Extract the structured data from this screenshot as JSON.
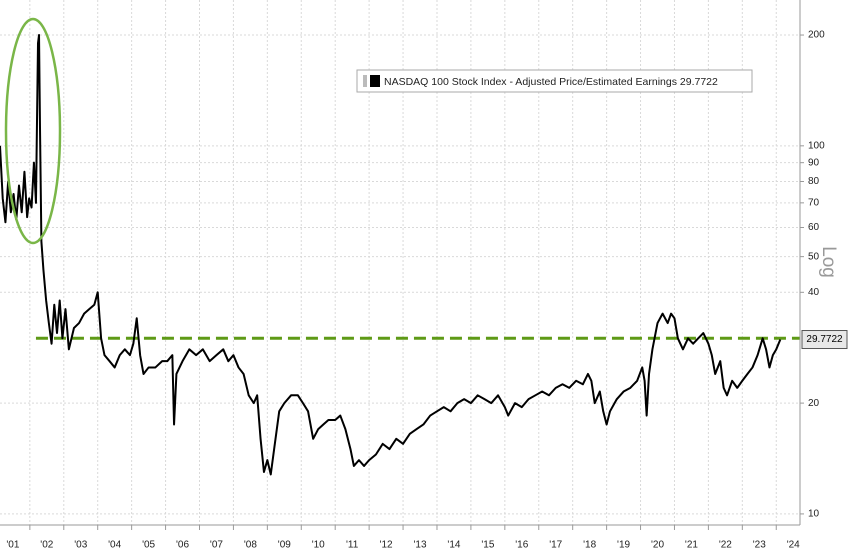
{
  "chart_data": {
    "type": "line",
    "log_scale": true,
    "scale_label": "Log",
    "grid": true,
    "legend": "top-right",
    "x": [
      2001.12,
      2001.2,
      2001.28,
      2001.36,
      2001.44,
      2001.52,
      2001.6,
      2001.68,
      2001.76,
      2001.84,
      2001.92,
      2001.98,
      2002.05,
      2002.12,
      2002.18,
      2002.24,
      2002.27,
      2002.3,
      2002.34,
      2002.4,
      2002.48,
      2002.56,
      2002.64,
      2002.72,
      2002.8,
      2002.88,
      2002.96,
      2003.05,
      2003.15,
      2003.3,
      2003.45,
      2003.6,
      2003.75,
      2003.9,
      2004.0,
      2004.1,
      2004.2,
      2004.35,
      2004.5,
      2004.65,
      2004.8,
      2004.95,
      2005.05,
      2005.15,
      2005.25,
      2005.35,
      2005.5,
      2005.7,
      2005.9,
      2006.05,
      2006.2,
      2006.25,
      2006.32,
      2006.5,
      2006.7,
      2006.9,
      2007.1,
      2007.3,
      2007.5,
      2007.7,
      2007.85,
      2008.0,
      2008.15,
      2008.3,
      2008.45,
      2008.6,
      2008.7,
      2008.8,
      2008.9,
      2009.0,
      2009.1,
      2009.2,
      2009.35,
      2009.5,
      2009.7,
      2009.9,
      2010.05,
      2010.2,
      2010.35,
      2010.5,
      2010.65,
      2010.8,
      2011.0,
      2011.15,
      2011.3,
      2011.45,
      2011.55,
      2011.7,
      2011.85,
      2012.0,
      2012.2,
      2012.4,
      2012.6,
      2012.8,
      2013.0,
      2013.2,
      2013.4,
      2013.6,
      2013.8,
      2014.0,
      2014.2,
      2014.4,
      2014.6,
      2014.8,
      2015.0,
      2015.2,
      2015.4,
      2015.6,
      2015.8,
      2016.0,
      2016.1,
      2016.3,
      2016.5,
      2016.7,
      2016.9,
      2017.1,
      2017.3,
      2017.5,
      2017.7,
      2017.9,
      2018.1,
      2018.3,
      2018.45,
      2018.55,
      2018.65,
      2018.8,
      2018.9,
      2019.0,
      2019.1,
      2019.3,
      2019.5,
      2019.7,
      2019.9,
      2020.05,
      2020.12,
      2020.18,
      2020.25,
      2020.35,
      2020.5,
      2020.65,
      2020.8,
      2020.9,
      2021.0,
      2021.1,
      2021.25,
      2021.4,
      2021.55,
      2021.7,
      2021.85,
      2022.0,
      2022.1,
      2022.2,
      2022.35,
      2022.45,
      2022.55,
      2022.7,
      2022.85,
      2023.0,
      2023.15,
      2023.3,
      2023.45,
      2023.6,
      2023.7,
      2023.8,
      2023.9,
      2024.0,
      2024.12
    ],
    "series": [
      {
        "name": "NASDAQ 100 Stock Index - Adjusted Price/Estimated Earnings",
        "color": "#000000",
        "values": [
          100,
          72,
          62,
          80,
          66,
          74,
          63,
          78,
          66,
          85,
          64,
          72,
          68,
          90,
          70,
          190,
          200,
          110,
          55,
          46,
          38,
          33,
          29,
          37,
          31,
          38,
          30,
          36,
          28,
          32,
          33,
          35,
          36,
          37,
          40,
          30,
          27,
          26,
          25,
          27,
          28,
          27,
          29,
          34,
          27,
          24,
          25,
          25,
          26,
          26,
          27,
          17.5,
          24,
          26,
          28,
          27,
          28,
          26,
          27,
          28,
          26,
          27,
          25,
          24,
          21,
          20,
          21,
          16,
          13,
          14,
          12.8,
          15,
          19,
          20,
          21,
          21,
          20,
          19,
          16,
          17,
          17.5,
          18,
          18,
          18.5,
          17,
          15,
          13.5,
          14,
          13.5,
          14,
          14.5,
          15.5,
          15,
          16,
          15.5,
          16.5,
          17,
          17.5,
          18.5,
          19,
          19.5,
          19,
          20,
          20.5,
          20,
          21,
          20.5,
          20,
          21,
          19.5,
          18.5,
          20,
          19.5,
          20.5,
          21,
          21.5,
          21,
          22,
          22.5,
          22,
          23,
          22.5,
          24,
          23,
          20,
          21.5,
          19,
          17.5,
          19,
          20.5,
          21.5,
          22,
          23,
          25,
          23,
          18.5,
          24,
          28,
          33,
          35,
          33,
          35,
          34,
          30,
          28,
          30,
          29,
          30,
          31,
          29,
          27,
          24,
          26,
          22,
          21,
          23,
          22,
          23,
          24,
          25,
          27,
          30,
          28,
          25,
          27,
          28,
          29.7722
        ]
      }
    ],
    "reference_line": {
      "value": 30,
      "color": "#5e9a16"
    },
    "xlim": [
      2001.12,
      2024.7
    ],
    "xticks": [
      {
        "value": 2001,
        "label": "'01"
      },
      {
        "value": 2002,
        "label": "'02"
      },
      {
        "value": 2003,
        "label": "'03"
      },
      {
        "value": 2004,
        "label": "'04"
      },
      {
        "value": 2005,
        "label": "'05"
      },
      {
        "value": 2006,
        "label": "'06"
      },
      {
        "value": 2007,
        "label": "'07"
      },
      {
        "value": 2008,
        "label": "'08"
      },
      {
        "value": 2009,
        "label": "'09"
      },
      {
        "value": 2010,
        "label": "'10"
      },
      {
        "value": 2011,
        "label": "'11"
      },
      {
        "value": 2012,
        "label": "'12"
      },
      {
        "value": 2013,
        "label": "'13"
      },
      {
        "value": 2014,
        "label": "'14"
      },
      {
        "value": 2015,
        "label": "'15"
      },
      {
        "value": 2016,
        "label": "'16"
      },
      {
        "value": 2017,
        "label": "'17"
      },
      {
        "value": 2018,
        "label": "'18"
      },
      {
        "value": 2019,
        "label": "'19"
      },
      {
        "value": 2020,
        "label": "'20"
      },
      {
        "value": 2021,
        "label": "'21"
      },
      {
        "value": 2022,
        "label": "'22"
      },
      {
        "value": 2023,
        "label": "'23"
      },
      {
        "value": 2024,
        "label": "'24"
      }
    ],
    "ylim": [
      9.33,
      249
    ],
    "yticks": [
      10,
      20,
      40,
      50,
      60,
      70,
      80,
      90,
      100,
      200
    ]
  }
}
